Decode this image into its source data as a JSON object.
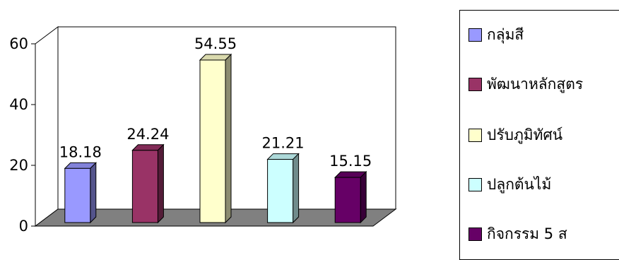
{
  "chart_data": {
    "type": "bar",
    "categories": [
      "กลุ่มสี",
      "พัฒนาหลักสูตร",
      "ปรับภูมิทัศน์",
      "ปลูกต้นไม้",
      "กิจกรรม 5 ส"
    ],
    "values": [
      18.18,
      24.24,
      54.55,
      21.21,
      15.15
    ],
    "value_labels": [
      "18.18",
      "24.24",
      "54.55",
      "21.21",
      "15.15"
    ],
    "colors": [
      "#9999ff",
      "#993366",
      "#ffffcc",
      "#ccffff",
      "#660066"
    ],
    "yticks": [
      "0",
      "20",
      "40",
      "60"
    ],
    "ylim": [
      0,
      60
    ],
    "style": "3d",
    "grid": false,
    "legend_position": "right",
    "title": "",
    "xlabel": "",
    "ylabel": ""
  }
}
